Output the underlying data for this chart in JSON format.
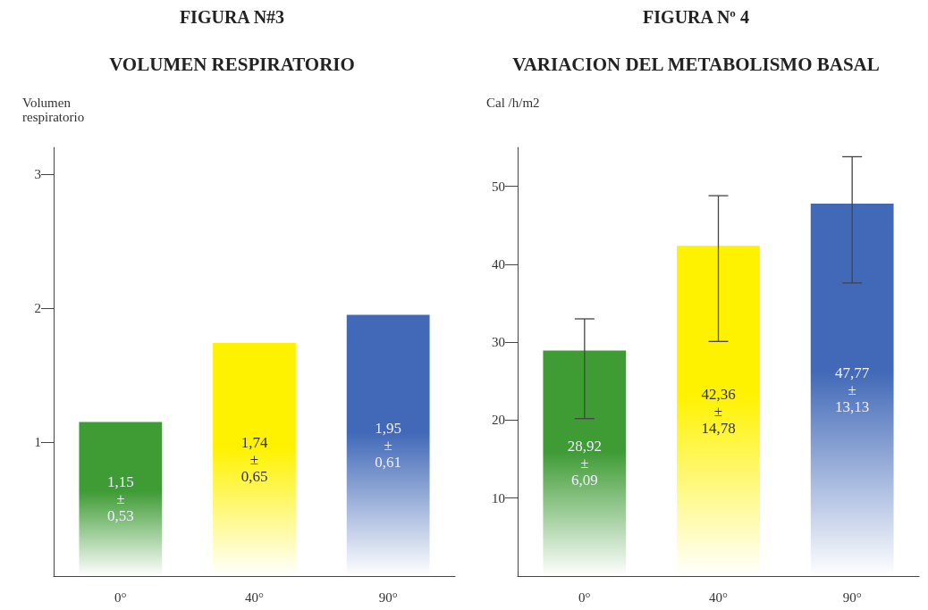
{
  "chart_data": [
    {
      "type": "bar",
      "title": "FIGURA N#3",
      "subtitle": "VOLUMEN RESPIRATORIO",
      "ylabel": "Volumen respiratorio",
      "categories": [
        "0°",
        "40°",
        "90°"
      ],
      "values": [
        1.15,
        1.74,
        1.95
      ],
      "colors": [
        "#3f9c35",
        "#fff200",
        "#4169b8"
      ],
      "value_labels": [
        "1,15\n±\n0,53",
        "1,74\n±\n0,65",
        "1,95\n±\n0,61"
      ],
      "ylim": [
        0,
        3.2
      ],
      "yticks": [
        1,
        2,
        3
      ],
      "grid": false
    },
    {
      "type": "bar",
      "title": "FIGURA Nº 4",
      "subtitle": "VARIACION DEL METABOLISMO BASAL",
      "ylabel": "Cal /h/m2",
      "categories": [
        "0°",
        "40°",
        "90°"
      ],
      "values": [
        28.92,
        42.36,
        47.77
      ],
      "colors": [
        "#3f9c35",
        "#fff200",
        "#4169b8"
      ],
      "errors": [
        [
          20.2,
          33
        ],
        [
          30.1,
          48.8
        ],
        [
          37.6,
          53.8
        ]
      ],
      "value_labels": [
        "28,92\n±\n6,09",
        "42,36\n±\n14,78",
        "47,77\n±\n13,13"
      ],
      "ylim": [
        0,
        55
      ],
      "yticks": [
        10,
        20,
        30,
        40,
        50
      ],
      "grid": false
    }
  ]
}
